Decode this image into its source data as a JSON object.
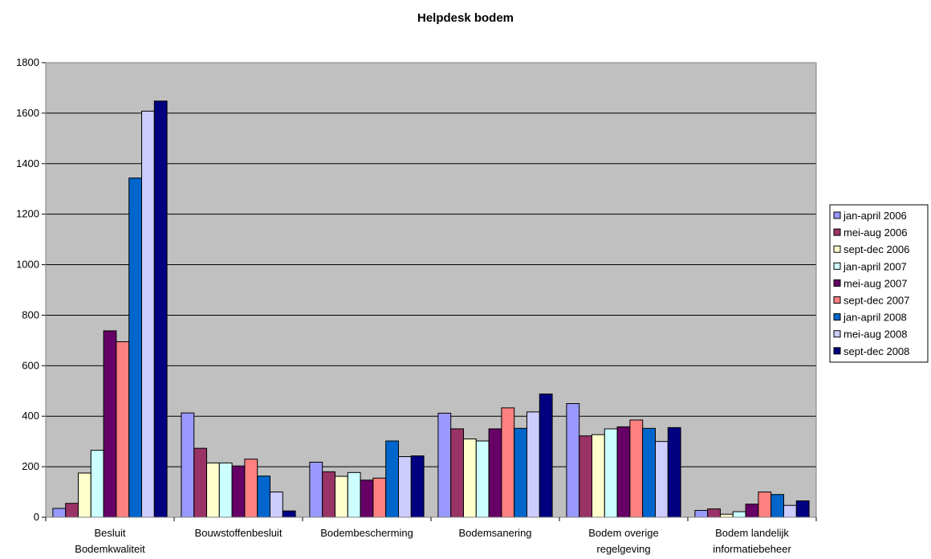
{
  "chart_data": {
    "type": "bar",
    "title": "Helpdesk bodem",
    "xlabel": "",
    "ylabel": "",
    "ylim": [
      0,
      1800
    ],
    "yticks": [
      0,
      200,
      400,
      600,
      800,
      1000,
      1200,
      1400,
      1600,
      1800
    ],
    "grid": true,
    "legend_position": "right",
    "plot_background": "#c0c0c0",
    "categories": [
      [
        "Besluit",
        "Bodemkwaliteit"
      ],
      [
        "Bouwstoffenbesluit"
      ],
      [
        "Bodembescherming"
      ],
      [
        "Bodemsanering"
      ],
      [
        "Bodem overige",
        "regelgeving"
      ],
      [
        "Bodem landelijk",
        "informatiebeheer"
      ]
    ],
    "series": [
      {
        "name": "jan-april 2006",
        "color": "#9999ff",
        "values": [
          35,
          413,
          218,
          412,
          450,
          27
        ]
      },
      {
        "name": "mei-aug 2006",
        "color": "#993366",
        "values": [
          55,
          273,
          180,
          350,
          322,
          33
        ]
      },
      {
        "name": "sept-dec 2006",
        "color": "#ffffcc",
        "values": [
          175,
          215,
          162,
          310,
          327,
          12
        ]
      },
      {
        "name": "jan-april 2007",
        "color": "#ccffff",
        "values": [
          265,
          215,
          177,
          302,
          350,
          22
        ]
      },
      {
        "name": "mei-aug 2007",
        "color": "#660066",
        "values": [
          738,
          203,
          147,
          350,
          358,
          52
        ]
      },
      {
        "name": "sept-dec 2007",
        "color": "#ff8080",
        "values": [
          695,
          230,
          155,
          433,
          385,
          100
        ]
      },
      {
        "name": "jan-april 2008",
        "color": "#0066cc",
        "values": [
          1343,
          163,
          302,
          352,
          352,
          90
        ]
      },
      {
        "name": "mei-aug 2008",
        "color": "#ccccff",
        "values": [
          1608,
          100,
          240,
          417,
          300,
          47
        ]
      },
      {
        "name": "sept-dec 2008",
        "color": "#000080",
        "values": [
          1648,
          25,
          243,
          488,
          355,
          65
        ]
      }
    ]
  }
}
